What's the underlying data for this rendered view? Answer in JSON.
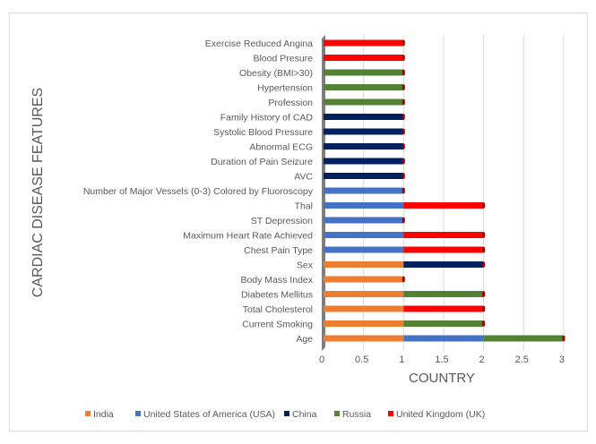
{
  "chart_data": {
    "type": "bar",
    "orientation": "horizontal",
    "stacked": true,
    "title": "",
    "xlabel": "COUNTRY",
    "ylabel": "CARDIAC DISEASE FEATURES",
    "xlim": [
      0,
      3
    ],
    "xticks": [
      "0",
      "0.5",
      "1",
      "1.5",
      "2",
      "2.5",
      "3"
    ],
    "xtick_values": [
      0,
      0.5,
      1,
      1.5,
      2,
      2.5,
      3
    ],
    "grid": true,
    "legend_position": "bottom",
    "categories": [
      "Exercise Reduced Angina",
      "Blood Presure",
      "Obesity (BMI>30)",
      "Hypertension",
      "Profession",
      "Family History of CAD",
      "Systolic Blood Pressure",
      "Abnormal ECG",
      "Duration of Pain Seizure",
      "AVC",
      "Number of Major Vessels (0-3) Colored by Fluoroscopy",
      "Thal",
      "ST Depression",
      "Maximum Heart Rate Achieved",
      "Chest Pain Type",
      "Sex",
      "Body Mass Index",
      "Diabetes Mellitus",
      "Total Cholesterol",
      "Current Smoking",
      "Age"
    ],
    "series": [
      {
        "name": "India",
        "color": "#ed7d31",
        "values": [
          0,
          0,
          0,
          0,
          0,
          0,
          0,
          0,
          0,
          0,
          0,
          0,
          0,
          0,
          0,
          1,
          1,
          1,
          1,
          1,
          1
        ]
      },
      {
        "name": "United States of America (USA)",
        "color": "#4472c4",
        "values": [
          0,
          0,
          0,
          0,
          0,
          0,
          0,
          0,
          0,
          0,
          1,
          1,
          1,
          1,
          1,
          0,
          0,
          0,
          0,
          0,
          1
        ]
      },
      {
        "name": "China",
        "color": "#002060",
        "values": [
          0,
          0,
          0,
          0,
          0,
          1,
          1,
          1,
          1,
          1,
          0,
          0,
          0,
          0,
          0,
          1,
          0,
          0,
          0,
          0,
          0
        ]
      },
      {
        "name": "Russia",
        "color": "#548235",
        "values": [
          0,
          0,
          1,
          1,
          1,
          0,
          0,
          0,
          0,
          0,
          0,
          0,
          0,
          0,
          0,
          0,
          0,
          1,
          0,
          1,
          1
        ]
      },
      {
        "name": "United Kingdom (UK)",
        "color": "#ff0000",
        "values": [
          1,
          1,
          0,
          0,
          0,
          0,
          0,
          0,
          0,
          0,
          0,
          1,
          0,
          1,
          1,
          0,
          0,
          0,
          1,
          0,
          0
        ]
      }
    ]
  }
}
